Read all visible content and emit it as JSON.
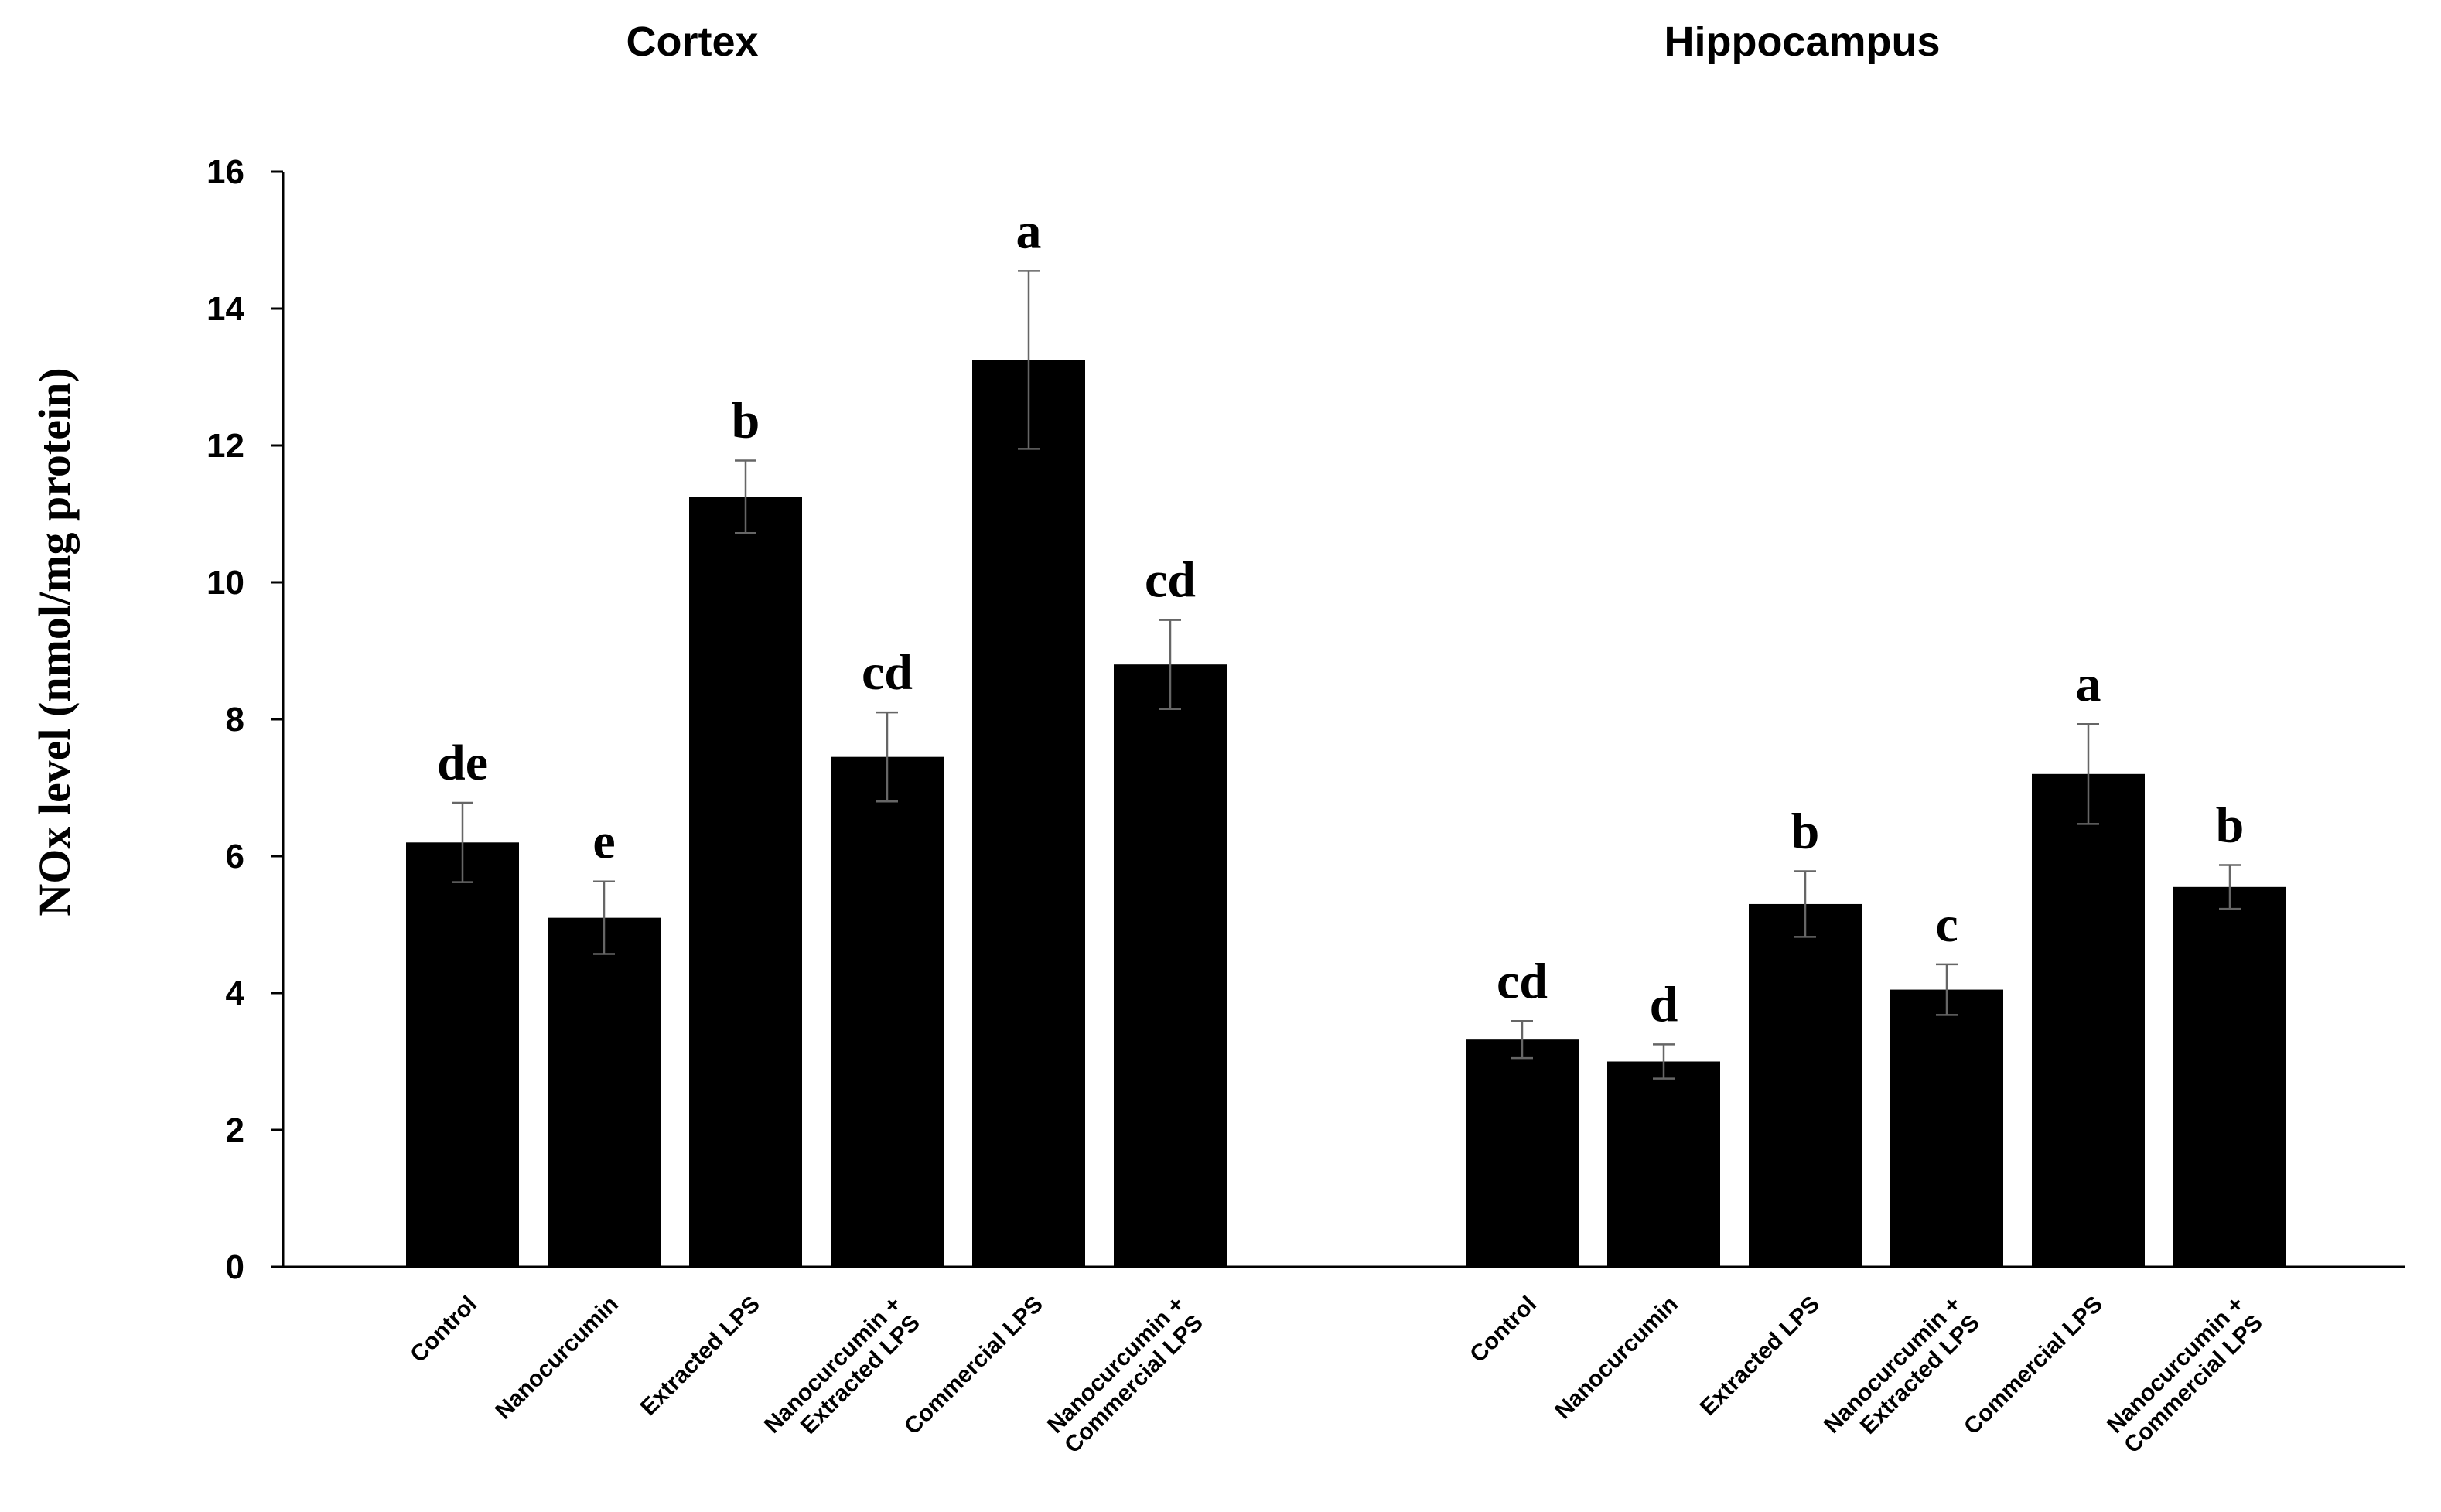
{
  "chart_data": {
    "type": "bar",
    "ylabel": "NOx level (nmol/mg protein)",
    "ylim": [
      0,
      16
    ],
    "yticks": [
      "0",
      "2",
      "4",
      "6",
      "8",
      "10",
      "12",
      "14",
      "16"
    ],
    "categories": [
      [
        "Control"
      ],
      [
        "Nanocurcumin"
      ],
      [
        "Extracted LPS"
      ],
      [
        "Nanocurcumin +",
        "Extracted LPS"
      ],
      [
        "Commercial LPS"
      ],
      [
        "Nanocurcumin +",
        "Commercial LPS"
      ]
    ],
    "panels": [
      {
        "title": "Cortex",
        "values": [
          6.2,
          5.1,
          11.25,
          7.45,
          13.25,
          8.8
        ],
        "errors": [
          0.58,
          0.53,
          0.53,
          0.65,
          1.3,
          0.65
        ],
        "letters": [
          "de",
          "e",
          "b",
          "cd",
          "a",
          "cd"
        ]
      },
      {
        "title": "Hippocampus",
        "values": [
          3.32,
          3.0,
          5.3,
          4.05,
          7.2,
          5.55
        ],
        "errors": [
          0.27,
          0.25,
          0.48,
          0.37,
          0.73,
          0.32
        ],
        "letters": [
          "cd",
          "d",
          "b",
          "c",
          "a",
          "b"
        ]
      }
    ],
    "grid": false,
    "legend": "none",
    "bar_color": "#000000"
  }
}
